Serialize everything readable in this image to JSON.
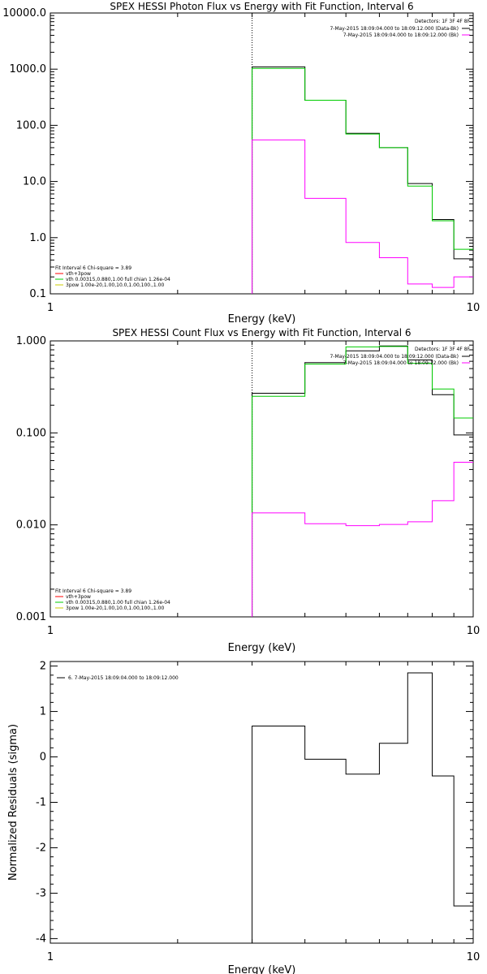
{
  "chart_data": [
    {
      "type": "line",
      "title": "SPEX HESSI Photon Flux vs Energy with Fit Function, Interval 6",
      "xlabel": "Energy (keV)",
      "ylabel": "",
      "xscale": "log",
      "yscale": "log",
      "xlim": [
        1,
        10
      ],
      "ylim": [
        0.1,
        10000
      ],
      "x_ticks": [
        "1",
        "10"
      ],
      "y_ticks": [
        "0.1",
        "1.0",
        "10.0",
        "100.0",
        "1000.0",
        "10000.0"
      ],
      "marker_x": 3,
      "x_edges": [
        3,
        4,
        5,
        6,
        7,
        8,
        9,
        10
      ],
      "series": [
        {
          "name": "7-May-2015 18:09:04.000 to 18:09:12.000 (Data-Bk)",
          "color": "#000000",
          "values": [
            1100,
            280,
            72,
            40,
            9.2,
            2.1,
            0.42
          ]
        },
        {
          "name": "vth+3pow",
          "color": "#00cc00",
          "values": [
            1030,
            280,
            70,
            40,
            8.3,
            2.0,
            0.62
          ]
        },
        {
          "name": "7-May-2015 18:09:04.000 to 18:09:12.000 (Bk)",
          "color": "#ff00ff",
          "values": [
            55,
            5.0,
            0.82,
            0.44,
            0.15,
            0.13,
            0.2
          ]
        }
      ],
      "legend_top": {
        "detectors": "Detectors: 1F 3F 4F 8F",
        "entries": [
          {
            "text": "7-May-2015 18:09:04.000 to 18:09:12.000 (Data-Bk)",
            "color": "#000000"
          },
          {
            "text": "7-May-2015 18:09:04.000 to 18:09:12.000 (Bk)",
            "color": "#ff00ff"
          }
        ]
      },
      "legend_bottom": {
        "header": "Fit Interval 6   Chi-square = 3.89",
        "entries": [
          {
            "text": "vth+3pow",
            "color": "#ff0000"
          },
          {
            "text": "vth 0.00315,0.880,1.00   full chian 1.26e-04",
            "color": "#00cc00"
          },
          {
            "text": "3pow 1.00e-20,1.00,10.0,1.00,100.,1.00",
            "color": "#cccc00"
          }
        ]
      }
    },
    {
      "type": "line",
      "title": "SPEX HESSI Count Flux vs Energy with Fit Function, Interval 6",
      "xlabel": "Energy (keV)",
      "ylabel": "",
      "xscale": "log",
      "yscale": "log",
      "xlim": [
        1,
        10
      ],
      "ylim": [
        0.001,
        1
      ],
      "x_ticks": [
        "1",
        "10"
      ],
      "y_ticks": [
        "0.001",
        "0.010",
        "0.100",
        "1.000"
      ],
      "marker_x": 3,
      "x_edges": [
        3,
        4,
        5,
        6,
        7,
        8,
        9,
        10
      ],
      "series": [
        {
          "name": "7-May-2015 18:09:04.000 to 18:09:12.000 (Data-Bk)",
          "color": "#000000",
          "values": [
            0.27,
            0.58,
            0.78,
            0.88,
            0.62,
            0.26,
            0.095
          ]
        },
        {
          "name": "vth+3pow",
          "color": "#00cc00",
          "values": [
            0.25,
            0.56,
            0.86,
            0.87,
            0.57,
            0.3,
            0.145
          ]
        },
        {
          "name": "7-May-2015 18:09:04.000 to 18:09:12.000 (Bk)",
          "color": "#ff00ff",
          "values": [
            0.0135,
            0.0103,
            0.0098,
            0.0101,
            0.0108,
            0.0183,
            0.048
          ]
        }
      ],
      "legend_top": {
        "detectors": "Detectors: 1F 3F 4F 8F",
        "entries": [
          {
            "text": "7-May-2015 18:09:04.000 to 18:09:12.000 (Data-Bk)",
            "color": "#000000"
          },
          {
            "text": "7-May-2015 18:09:04.000 to 18:09:12.000 (Bk)",
            "color": "#ff00ff"
          }
        ]
      },
      "legend_bottom": {
        "header": "Fit Interval 6   Chi-square = 3.89",
        "entries": [
          {
            "text": "vth+3pow",
            "color": "#ff0000"
          },
          {
            "text": "vth 0.00315,0.880,1.00   full chian 1.26e-04",
            "color": "#00cc00"
          },
          {
            "text": "3pow 1.00e-20,1.00,10.0,1.00,100.,1.00",
            "color": "#cccc00"
          }
        ]
      }
    },
    {
      "type": "line",
      "title": "",
      "xlabel": "Energy (keV)",
      "ylabel": "Normalized Residuals (sigma)",
      "xscale": "log",
      "yscale": "linear",
      "xlim": [
        1,
        10
      ],
      "ylim": [
        -4.1,
        2.1
      ],
      "x_ticks": [
        "1",
        "10"
      ],
      "y_ticks": [
        "-4",
        "-3",
        "-2",
        "-1",
        "0",
        "1",
        "2"
      ],
      "x_edges": [
        3,
        4,
        5,
        6,
        7,
        8,
        9,
        10
      ],
      "series": [
        {
          "name": "6. 7-May-2015 18:09:04.000 to 18:09:12.000",
          "color": "#000000",
          "values": [
            0.68,
            -0.05,
            -0.38,
            0.3,
            1.85,
            -0.42,
            -3.28
          ]
        }
      ],
      "legend_top": {
        "entries": [
          {
            "text": "6. 7-May-2015 18:09:04.000 to 18:09:12.000",
            "color": "#000000"
          }
        ]
      }
    }
  ]
}
